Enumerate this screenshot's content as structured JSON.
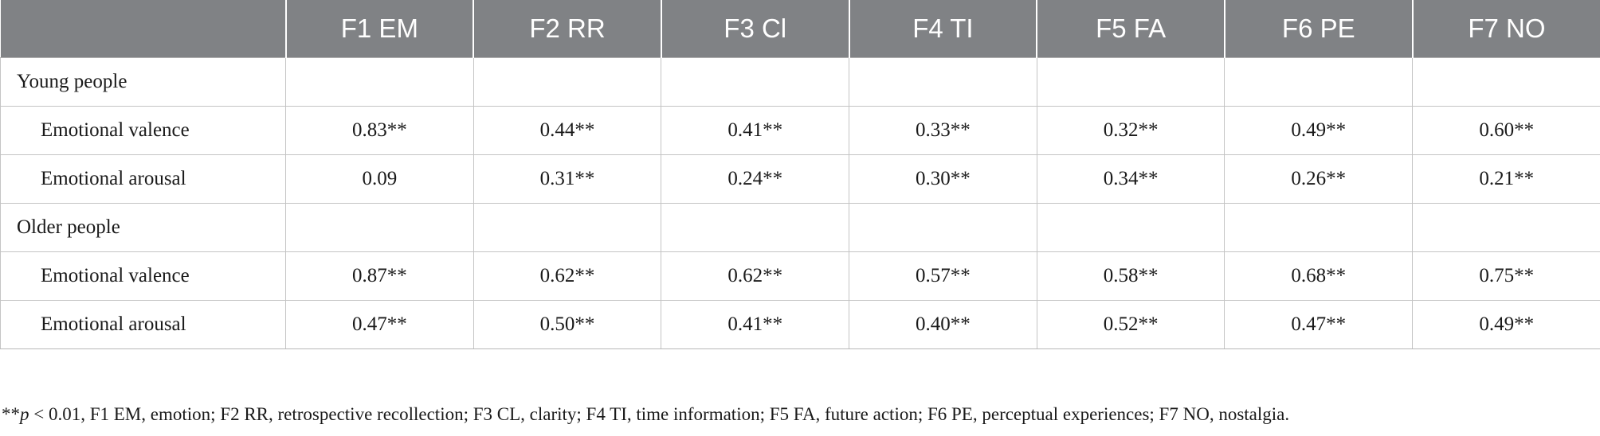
{
  "table": {
    "columns": [
      "",
      "F1 EM",
      "F2 RR",
      "F3 Cl",
      "F4 TI",
      "F5 FA",
      "F6 PE",
      "F7 NO"
    ],
    "rows": [
      {
        "type": "group",
        "label": "Young people",
        "values": [
          "",
          "",
          "",
          "",
          "",
          "",
          ""
        ]
      },
      {
        "type": "sub",
        "label": "Emotional valence",
        "values": [
          "0.83**",
          "0.44**",
          "0.41**",
          "0.33**",
          "0.32**",
          "0.49**",
          "0.60**"
        ]
      },
      {
        "type": "sub",
        "label": "Emotional arousal",
        "values": [
          "0.09",
          "0.31**",
          "0.24**",
          "0.30**",
          "0.34**",
          "0.26**",
          "0.21**"
        ]
      },
      {
        "type": "group",
        "label": "Older people",
        "values": [
          "",
          "",
          "",
          "",
          "",
          "",
          ""
        ]
      },
      {
        "type": "sub",
        "label": "Emotional valence",
        "values": [
          "0.87**",
          "0.62**",
          "0.62**",
          "0.57**",
          "0.58**",
          "0.68**",
          "0.75**"
        ]
      },
      {
        "type": "sub",
        "label": "Emotional arousal",
        "values": [
          "0.47**",
          "0.50**",
          "0.41**",
          "0.40**",
          "0.52**",
          "0.47**",
          "0.49**"
        ]
      }
    ]
  },
  "footnote": {
    "stars": "**",
    "p": "p",
    "rest": " < 0.01, F1 EM, emotion; F2 RR, retrospective recollection; F3 CL, clarity; F4 TI, time information; F5 FA, future action; F6 PE, perceptual experiences; F7 NO, nostalgia."
  }
}
